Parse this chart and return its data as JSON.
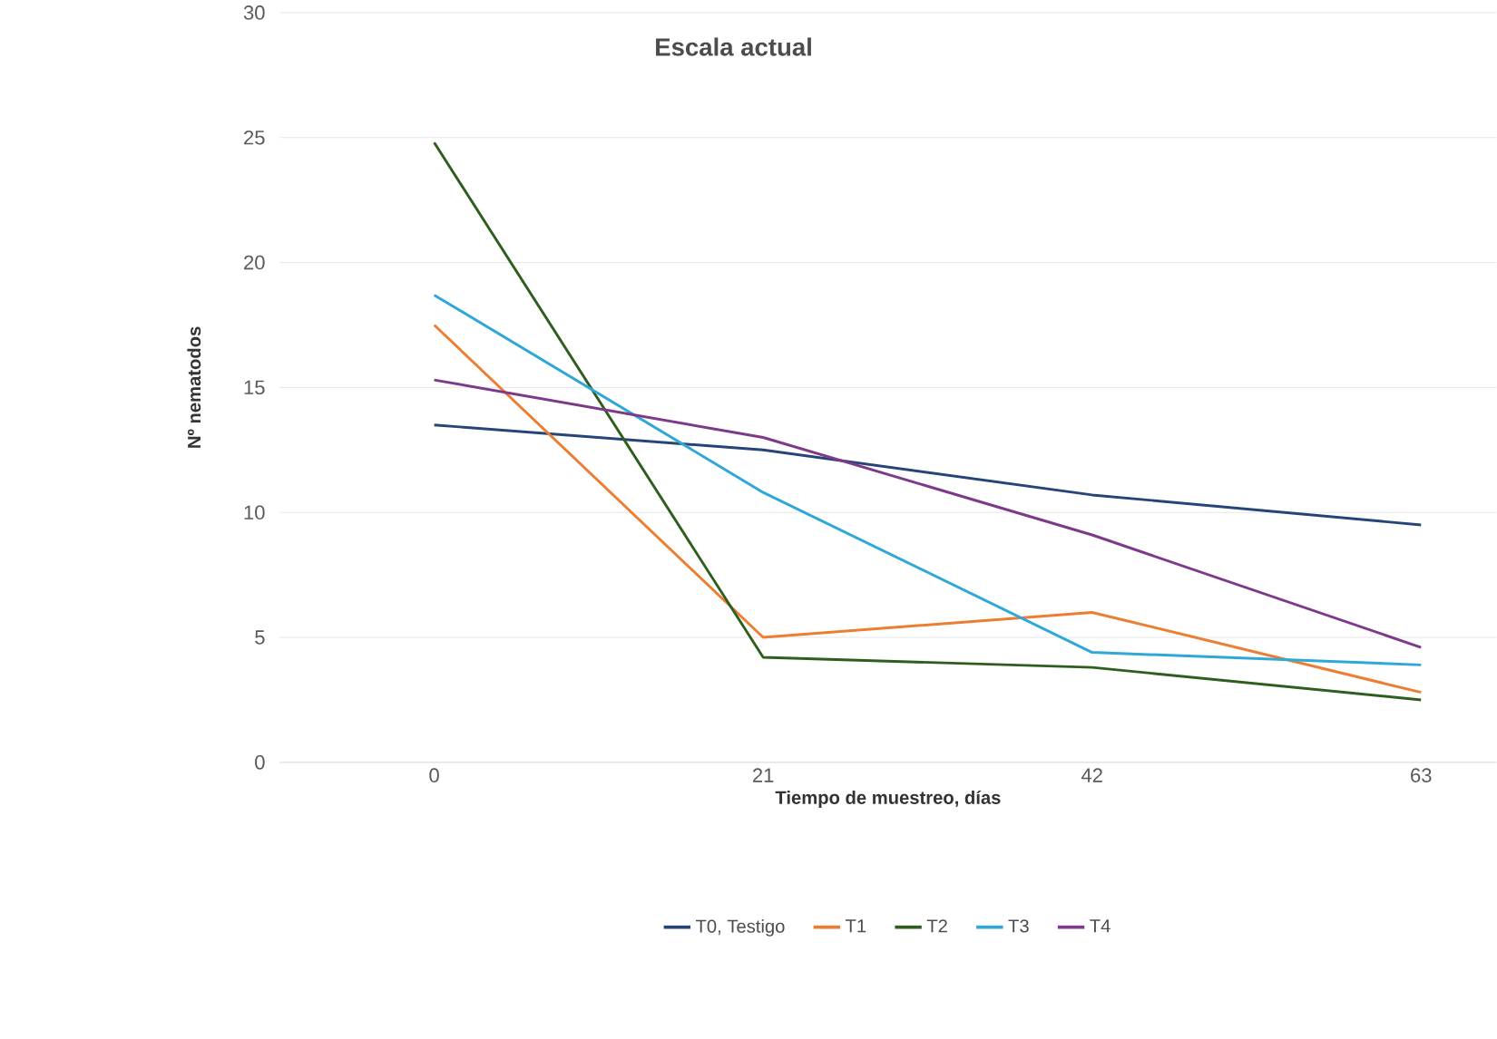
{
  "chart_data": {
    "type": "line",
    "title": "Escala actual",
    "xlabel": "Tiempo de muestreo, días",
    "ylabel": "Nº nematodos",
    "categories": [
      "0",
      "21",
      "42",
      "63"
    ],
    "series": [
      {
        "name": "T0, Testigo",
        "color": "#264478",
        "values": [
          13.5,
          12.5,
          10.7,
          9.5
        ]
      },
      {
        "name": "T1",
        "color": "#ED7D31",
        "values": [
          17.5,
          5.0,
          6.0,
          2.8
        ]
      },
      {
        "name": "T2",
        "color": "#2E5E1E",
        "values": [
          24.8,
          4.2,
          3.8,
          2.5
        ]
      },
      {
        "name": "T3",
        "color": "#2FA8D8",
        "values": [
          18.7,
          10.8,
          4.4,
          3.9
        ]
      },
      {
        "name": "T4",
        "color": "#7E3A8A",
        "values": [
          15.3,
          13.0,
          9.1,
          4.6
        ]
      }
    ],
    "ylim": [
      0,
      30
    ],
    "yticks": [
      0,
      5,
      10,
      15,
      20,
      25,
      30
    ],
    "grid": "y",
    "legend": "bottom",
    "marker": "none",
    "line_style": "solid"
  }
}
